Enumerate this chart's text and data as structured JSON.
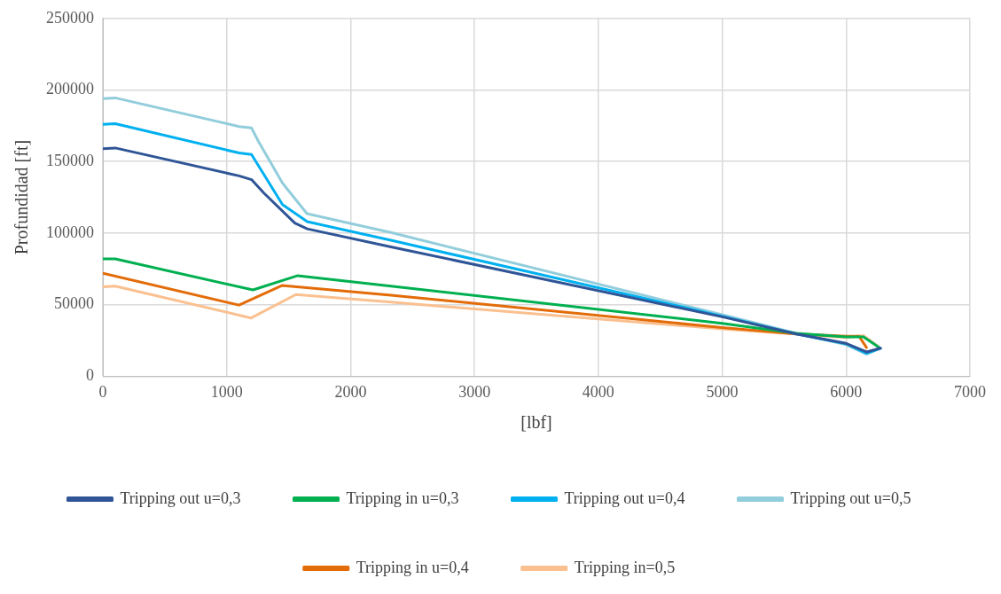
{
  "chart_data": {
    "type": "line",
    "xlabel": "[lbf]",
    "ylabel": "Profundidad [ft]",
    "xlim": [
      0,
      7000
    ],
    "xticks": [
      0,
      1000,
      2000,
      3000,
      4000,
      5000,
      6000,
      7000
    ],
    "ylim": [
      0,
      250000
    ],
    "yticks": [
      0,
      50000,
      100000,
      150000,
      200000,
      250000
    ],
    "grid": true,
    "legend": "bottom",
    "marker": "none",
    "line_style": "solid",
    "series": [
      {
        "name": "Tripping out u=0,3",
        "color": "#2f5597",
        "x": [
          0,
          100,
          1100,
          1200,
          1300,
          1550,
          1650,
          2326,
          5000,
          5600,
          6000,
          6165,
          6277
        ],
        "values": [
          159000,
          159500,
          140000,
          137400,
          128000,
          107000,
          103000,
          90400,
          41500,
          29500,
          23000,
          17000,
          19600
        ]
      },
      {
        "name": "Tripping in u=0,3",
        "color": "#00b050",
        "x": [
          0,
          100,
          1212,
          1573,
          2326,
          5000,
          5600,
          6000,
          6140,
          6260
        ],
        "values": [
          82000,
          82000,
          60300,
          70300,
          62900,
          37000,
          30000,
          27500,
          27500,
          20500
        ]
      },
      {
        "name": "Tripping out u=0,4",
        "color": "#00b0f0",
        "x": [
          0,
          100,
          1100,
          1200,
          1250,
          1450,
          1650,
          2326,
          5000,
          5600,
          6000,
          6165,
          6277
        ],
        "values": [
          176000,
          176500,
          156000,
          155000,
          148000,
          120000,
          108000,
          95000,
          42000,
          29500,
          22700,
          16000,
          19600
        ]
      },
      {
        "name": "Tripping out u=0,5",
        "color": "#92cddc",
        "x": [
          0,
          100,
          1100,
          1200,
          1250,
          1450,
          1648,
          2326,
          5000,
          5600,
          6000,
          6165,
          6277
        ],
        "values": [
          194000,
          194500,
          174500,
          173500,
          165000,
          135000,
          113600,
          100400,
          43000,
          30000,
          22000,
          15500,
          19600
        ]
      },
      {
        "name": "Tripping in u=0,4",
        "color": "#e36c09",
        "x": [
          0,
          1099,
          1445,
          2326,
          5000,
          5600,
          6000,
          6104,
          6165
        ],
        "values": [
          72000,
          49700,
          63400,
          56600,
          34000,
          29500,
          28000,
          28000,
          20000
        ]
      },
      {
        "name": "Tripping in=0,5",
        "color": "#fac090",
        "x": [
          0,
          100,
          1197,
          1558,
          2326,
          5000,
          5600,
          6000,
          6140,
          6277
        ],
        "values": [
          62500,
          63000,
          40700,
          57100,
          51800,
          33000,
          29500,
          27000,
          28500,
          19600
        ]
      }
    ]
  }
}
